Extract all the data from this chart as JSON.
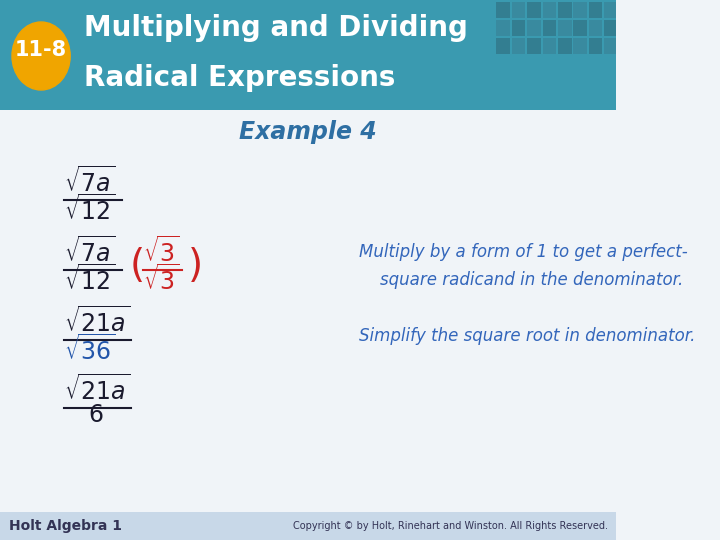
{
  "header_bg_color": "#2e8b9e",
  "header_text_line1": "Multiplying and Dividing",
  "header_text_line2": "Radical Expressions",
  "badge_color": "#f0a500",
  "badge_text": "11-8",
  "example_title": "Example 4",
  "title_color": "#2e6fa3",
  "body_bg_color": "#f0f4f8",
  "math_color_black": "#1a1a2e",
  "math_color_blue": "#2255aa",
  "math_color_red": "#cc2222",
  "comment_color": "#3366bb",
  "footer_text": "Holt Algebra 1",
  "copyright_text": "Copyright © by Holt, Rinehart and Winston. All Rights Reserved.",
  "footer_bg_color": "#c8d8e8",
  "teal_bg_color": "#3a9ab0"
}
